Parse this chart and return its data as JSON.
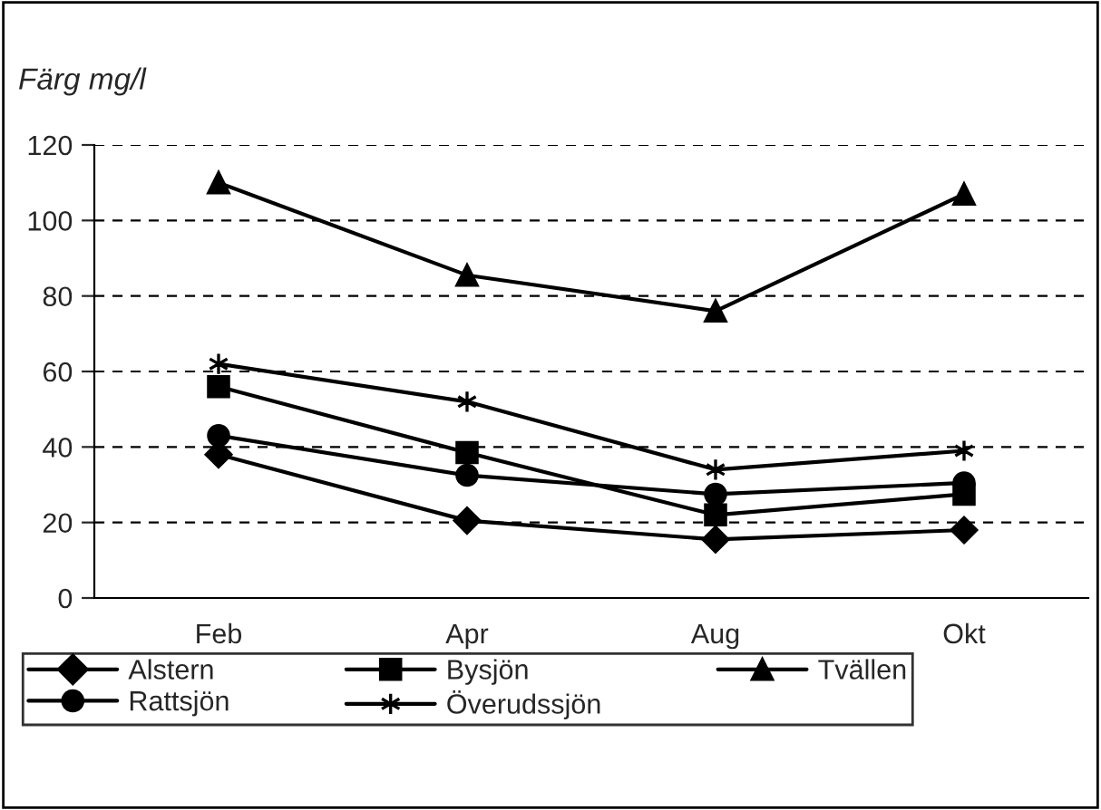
{
  "chart_data": {
    "type": "line",
    "ylabel": "Färg mg/l",
    "categories": [
      "Feb",
      "Apr",
      "Aug",
      "Okt"
    ],
    "series": [
      {
        "name": "Alstern",
        "color": "#000000",
        "marker": "diamond",
        "values": [
          38,
          20.5,
          15.5,
          18
        ]
      },
      {
        "name": "Bysjön",
        "color": "#000000",
        "marker": "square",
        "values": [
          56,
          38.5,
          22,
          27.5
        ]
      },
      {
        "name": "Tvällen",
        "color": "#000000",
        "marker": "triangle",
        "values": [
          110,
          85.5,
          76,
          107
        ]
      },
      {
        "name": "Rattsjön",
        "color": "#000000",
        "marker": "circle",
        "values": [
          43,
          32.5,
          27.5,
          30.5
        ]
      },
      {
        "name": "Överudssjön",
        "color": "#000000",
        "marker": "cross",
        "values": [
          62,
          52,
          34,
          39
        ]
      }
    ],
    "ylim": [
      0,
      120
    ],
    "yticks": [
      0,
      20,
      40,
      60,
      80,
      100,
      120
    ],
    "grid": "y",
    "legend": "bottom",
    "line_style": "solid"
  }
}
